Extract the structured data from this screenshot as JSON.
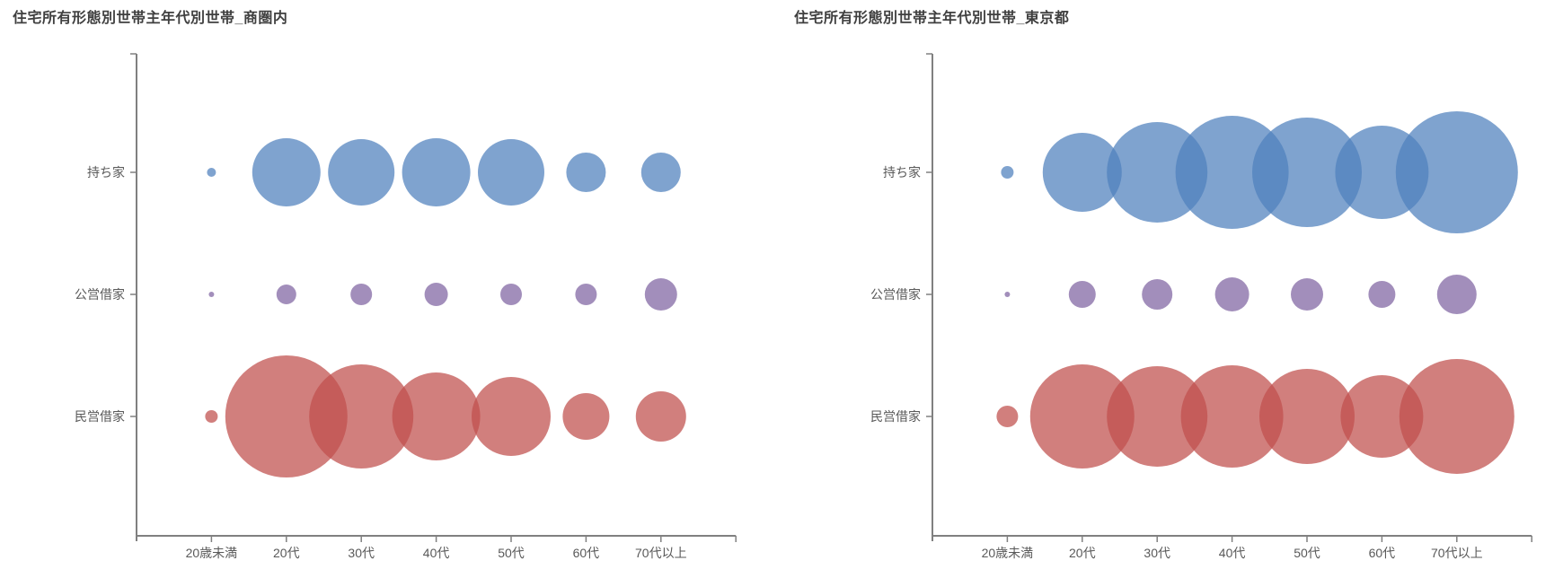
{
  "page": {
    "background": "#ffffff"
  },
  "style": {
    "axis_color": "#808080",
    "tick_color": "#808080",
    "label_color": "#595959",
    "title_color": "#3f3f3f",
    "bubble_opacity": 0.73
  },
  "chart_data": [
    {
      "type": "bubble",
      "title": "住宅所有形態別世帯主年代別世帯_商圏内",
      "x_categories": [
        "20歳未満",
        "20代",
        "30代",
        "40代",
        "50代",
        "60代",
        "70代以上"
      ],
      "y_categories": [
        "持ち家",
        "公営借家",
        "民営借家"
      ],
      "legend": "none",
      "grid": false,
      "size_encoding": "bubble size = number of households (values not labeled in chart)",
      "series": [
        {
          "name": "持ち家",
          "color": "#4F81BD",
          "radius_px": [
            5,
            38,
            37,
            38,
            37,
            22,
            22
          ]
        },
        {
          "name": "公営借家",
          "color": "#8064A2",
          "radius_px": [
            3,
            11,
            12,
            13,
            12,
            12,
            18
          ]
        },
        {
          "name": "民営借家",
          "color": "#C0504D",
          "radius_px": [
            7,
            68,
            58,
            49,
            44,
            26,
            28
          ]
        }
      ]
    },
    {
      "type": "bubble",
      "title": "住宅所有形態別世帯主年代別世帯_東京都",
      "x_categories": [
        "20歳未満",
        "20代",
        "30代",
        "40代",
        "50代",
        "60代",
        "70代以上"
      ],
      "y_categories": [
        "持ち家",
        "公営借家",
        "民営借家"
      ],
      "legend": "none",
      "grid": false,
      "size_encoding": "bubble size = number of households (values not labeled in chart)",
      "series": [
        {
          "name": "持ち家",
          "color": "#4F81BD",
          "radius_px": [
            7,
            44,
            56,
            63,
            61,
            52,
            68
          ]
        },
        {
          "name": "公営借家",
          "color": "#8064A2",
          "radius_px": [
            3,
            15,
            17,
            19,
            18,
            15,
            22
          ]
        },
        {
          "name": "民営借家",
          "color": "#C0504D",
          "radius_px": [
            12,
            58,
            56,
            57,
            53,
            46,
            64
          ]
        }
      ]
    }
  ]
}
